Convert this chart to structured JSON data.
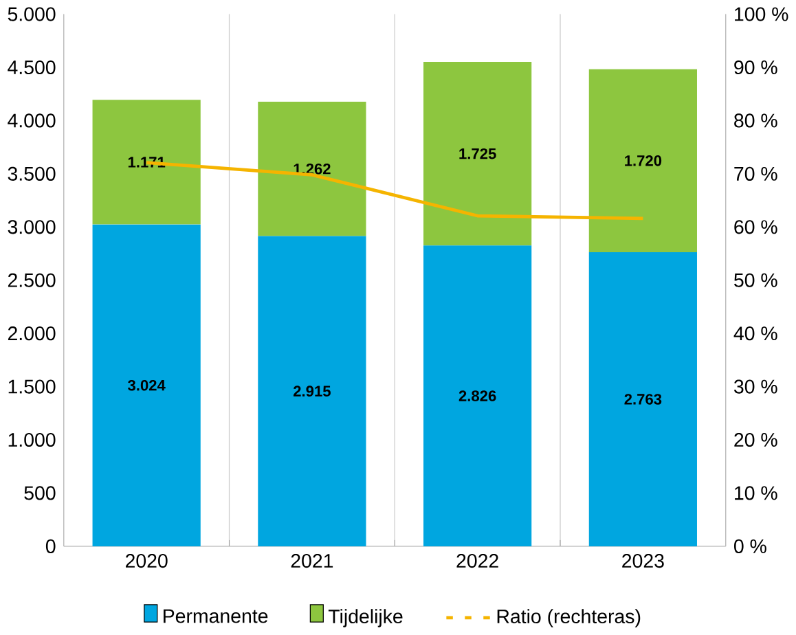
{
  "chart_data": {
    "type": "bar",
    "stacked": true,
    "categories": [
      "2020",
      "2021",
      "2022",
      "2023"
    ],
    "series": [
      {
        "name": "Permanente",
        "color": "#00a6e0",
        "values": [
          3024,
          2915,
          2826,
          2763
        ],
        "value_labels": [
          "3.024",
          "2.915",
          "2.826",
          "2.763"
        ]
      },
      {
        "name": "Tijdelijke",
        "color": "#8dc63f",
        "values": [
          1171,
          1262,
          1725,
          1720
        ],
        "value_labels": [
          "1.171",
          "1.262",
          "1.725",
          "1.720"
        ]
      },
      {
        "name": "Ratio (rechteras)",
        "type": "line",
        "axis": "y2",
        "color": "#f5b400",
        "values": [
          72.1,
          69.8,
          62.1,
          61.6
        ]
      }
    ],
    "ylim": [
      0,
      5000
    ],
    "yticks": [
      0,
      500,
      {
        "value": 1000,
        "label": "1.000"
      },
      {
        "value": 1500,
        "label": "1.500"
      },
      {
        "value": 2000,
        "label": "2.000"
      },
      {
        "value": 2500,
        "label": "2.500"
      },
      {
        "value": 3000,
        "label": "3.000"
      },
      {
        "value": 3500,
        "label": "3.500"
      },
      {
        "value": 4000,
        "label": "4.000"
      },
      {
        "value": 4500,
        "label": "4.500"
      },
      {
        "value": 5000,
        "label": "5.000"
      }
    ],
    "y2lim": [
      0,
      100
    ],
    "y2ticks": [
      {
        "value": 0,
        "label": "0 %"
      },
      {
        "value": 10,
        "label": "10 %"
      },
      {
        "value": 20,
        "label": "20 %"
      },
      {
        "value": 30,
        "label": "30 %"
      },
      {
        "value": 40,
        "label": "40 %"
      },
      {
        "value": 50,
        "label": "50 %"
      },
      {
        "value": 60,
        "label": "60 %"
      },
      {
        "value": 70,
        "label": "70 %"
      },
      {
        "value": 80,
        "label": "80 %"
      },
      {
        "value": 90,
        "label": "90 %"
      },
      {
        "value": 100,
        "label": "100 %"
      }
    ],
    "grid": "x",
    "legend": "bottom",
    "marker": "none"
  }
}
